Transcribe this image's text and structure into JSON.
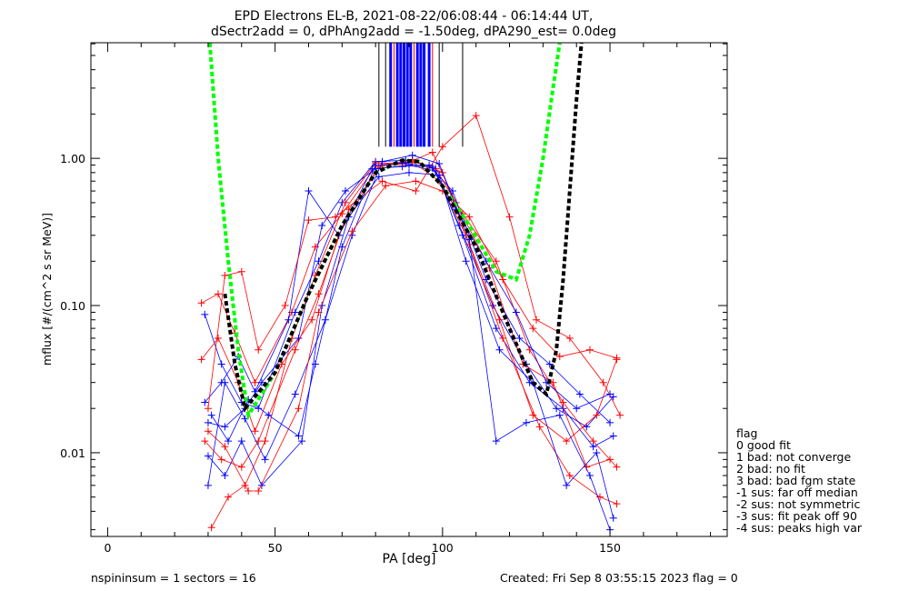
{
  "chart_data": {
    "type": "line",
    "title": "EPD Electrons EL-B, 2021-08-22/06:08:44 - 06:14:44 UT,",
    "subtitle": "dSectr2add = 0, dPhAng2add = -1.50deg, dPA290_est=   0.0deg",
    "xlabel": "PA [deg]",
    "ylabel": "mflux [#/(cm^2 s sr MeV)]",
    "xlim": [
      -5,
      185
    ],
    "ylim": [
      0.0027,
      6.1
    ],
    "yscale": "log",
    "xticks": [
      0,
      50,
      100,
      150
    ],
    "xtick_labels": [
      "0",
      "50",
      "100",
      "150"
    ],
    "yticks": [
      0.01,
      0.1,
      1.0
    ],
    "ytick_labels": [
      "0.01",
      "0.10",
      "1.00"
    ],
    "colors": {
      "red": "#ff0000",
      "blue": "#0000ff",
      "green": "#00ff00",
      "black": "#000000"
    },
    "series": [
      {
        "name": "red-1",
        "color": "#ff0000",
        "points": [
          [
            28,
            0.104
          ],
          [
            33,
            0.12
          ],
          [
            38,
            0.065
          ],
          [
            44,
            0.03
          ],
          [
            55,
            0.09
          ],
          [
            62,
            0.25
          ],
          [
            70,
            0.42
          ],
          [
            80,
            0.88
          ],
          [
            90,
            0.92
          ],
          [
            98,
            0.85
          ],
          [
            106,
            0.42
          ],
          [
            116,
            0.2
          ],
          [
            126,
            0.05
          ],
          [
            136,
            0.022
          ],
          [
            145,
            0.012
          ],
          [
            152,
            0.008
          ]
        ]
      },
      {
        "name": "blue-1",
        "color": "#0000ff",
        "points": [
          [
            29,
            0.087
          ],
          [
            34,
            0.04
          ],
          [
            40,
            0.022
          ],
          [
            45,
            0.02
          ],
          [
            56,
            0.09
          ],
          [
            63,
            0.2
          ],
          [
            70,
            0.5
          ],
          [
            80,
            0.95
          ],
          [
            89,
            0.97
          ],
          [
            97,
            0.88
          ],
          [
            105,
            0.35
          ],
          [
            115,
            0.1
          ],
          [
            125,
            0.04
          ],
          [
            134,
            0.02
          ],
          [
            143,
            0.015
          ],
          [
            151,
            0.024
          ]
        ]
      },
      {
        "name": "red-2",
        "color": "#ff0000",
        "points": [
          [
            28,
            0.043
          ],
          [
            33,
            0.06
          ],
          [
            39,
            0.03
          ],
          [
            44,
            0.014
          ],
          [
            52,
            0.04
          ],
          [
            61,
            0.08
          ],
          [
            69,
            0.3
          ],
          [
            81,
            0.9
          ],
          [
            91,
            0.95
          ],
          [
            99,
            0.7
          ],
          [
            107,
            0.3
          ],
          [
            117,
            0.08
          ],
          [
            127,
            0.018
          ],
          [
            137,
            0.012
          ],
          [
            146,
            0.018
          ],
          [
            152,
            0.043
          ]
        ]
      },
      {
        "name": "blue-2",
        "color": "#0000ff",
        "points": [
          [
            30,
            0.016
          ],
          [
            35,
            0.015
          ],
          [
            41,
            0.02
          ],
          [
            46,
            0.03
          ],
          [
            57,
            0.06
          ],
          [
            64,
            0.35
          ],
          [
            71,
            0.6
          ],
          [
            80,
            0.85
          ],
          [
            90,
            0.9
          ],
          [
            98,
            0.82
          ],
          [
            106,
            0.3
          ],
          [
            116,
            0.07
          ],
          [
            126,
            0.03
          ],
          [
            136,
            0.02
          ],
          [
            145,
            0.011
          ],
          [
            151,
            0.013
          ]
        ]
      },
      {
        "name": "red-3",
        "color": "#ff0000",
        "points": [
          [
            29,
            0.012
          ],
          [
            34,
            0.009
          ],
          [
            40,
            0.008
          ],
          [
            45,
            0.012
          ],
          [
            56,
            0.05
          ],
          [
            63,
            0.12
          ],
          [
            72,
            0.45
          ],
          [
            82,
            0.9
          ],
          [
            91,
            0.98
          ],
          [
            100,
            0.8
          ],
          [
            108,
            0.26
          ],
          [
            118,
            0.06
          ],
          [
            129,
            0.015
          ],
          [
            138,
            0.007
          ],
          [
            147,
            0.005
          ],
          [
            152,
            0.0045
          ]
        ]
      },
      {
        "name": "blue-3",
        "color": "#0000ff",
        "points": [
          [
            30,
            0.0095
          ],
          [
            35,
            0.007
          ],
          [
            40,
            0.012
          ],
          [
            46,
            0.006
          ],
          [
            58,
            0.012
          ],
          [
            64,
            0.1
          ],
          [
            72,
            0.4
          ],
          [
            81,
            0.75
          ],
          [
            90,
            0.8
          ],
          [
            99,
            0.77
          ],
          [
            107,
            0.2
          ],
          [
            117,
            0.05
          ],
          [
            127,
            0.03
          ],
          [
            137,
            0.006
          ],
          [
            146,
            0.01
          ],
          [
            151,
            0.0036
          ]
        ]
      },
      {
        "name": "red-4",
        "color": "#ff0000",
        "points": [
          [
            31,
            0.0031
          ],
          [
            36,
            0.005
          ],
          [
            41,
            0.006
          ],
          [
            47,
            0.012
          ],
          [
            55,
            0.06
          ],
          [
            62,
            0.16
          ],
          [
            71,
            0.5
          ],
          [
            80,
            0.93
          ],
          [
            89,
            0.92
          ],
          [
            97,
            1.1
          ],
          [
            104,
            0.5
          ],
          [
            114,
            0.18
          ],
          [
            124,
            0.04
          ],
          [
            133,
            0.03
          ],
          [
            143,
            0.008
          ],
          [
            150,
            0.009
          ]
        ]
      },
      {
        "name": "blue-4",
        "color": "#0000ff",
        "points": [
          [
            29,
            0.022
          ],
          [
            34,
            0.03
          ],
          [
            39,
            0.045
          ],
          [
            44,
            0.026
          ],
          [
            54,
            0.08
          ],
          [
            60,
            0.6
          ],
          [
            69,
            0.3
          ],
          [
            79,
            0.85
          ],
          [
            88,
            0.88
          ],
          [
            96,
            0.9
          ],
          [
            103,
            0.6
          ],
          [
            113,
            0.15
          ],
          [
            123,
            0.06
          ],
          [
            132,
            0.04
          ],
          [
            141,
            0.025
          ],
          [
            150,
            0.016
          ]
        ]
      },
      {
        "name": "red-5",
        "color": "#ff0000",
        "points": [
          [
            30,
            0.02
          ],
          [
            35,
            0.16
          ],
          [
            40,
            0.17
          ],
          [
            45,
            0.05
          ],
          [
            53,
            0.1
          ],
          [
            60,
            0.38
          ],
          [
            68,
            0.4
          ],
          [
            82,
            0.7
          ],
          [
            92,
            0.6
          ],
          [
            100,
            1.2
          ],
          [
            110,
            1.95
          ],
          [
            120,
            0.4
          ],
          [
            128,
            0.08
          ],
          [
            138,
            0.06
          ],
          [
            148,
            0.03
          ],
          [
            153,
            0.018
          ]
        ]
      },
      {
        "name": "blue-5",
        "color": "#0000ff",
        "points": [
          [
            30,
            0.006
          ],
          [
            35,
            0.03
          ],
          [
            41,
            0.017
          ],
          [
            47,
            0.009
          ],
          [
            56,
            0.025
          ],
          [
            65,
            0.08
          ],
          [
            73,
            0.3
          ],
          [
            82,
            0.95
          ],
          [
            91,
            1.05
          ],
          [
            99,
            0.92
          ],
          [
            108,
            0.28
          ],
          [
            116,
            0.012
          ],
          [
            125,
            0.016
          ],
          [
            135,
            0.018
          ],
          [
            144,
            0.007
          ],
          [
            150,
            0.003
          ]
        ]
      },
      {
        "name": "red-6",
        "color": "#ff0000",
        "points": [
          [
            30,
            0.014
          ],
          [
            35,
            0.011
          ],
          [
            42,
            0.0055
          ],
          [
            45,
            0.0055
          ],
          [
            57,
            0.02
          ],
          [
            63,
            0.09
          ],
          [
            73,
            0.32
          ],
          [
            83,
            0.65
          ],
          [
            92,
            0.7
          ],
          [
            100,
            0.6
          ],
          [
            108,
            0.4
          ],
          [
            118,
            0.15
          ],
          [
            127,
            0.07
          ],
          [
            135,
            0.045
          ],
          [
            144,
            0.05
          ],
          [
            152,
            0.044
          ]
        ]
      },
      {
        "name": "blue-6",
        "color": "#0000ff",
        "points": [
          [
            31,
            0.018
          ],
          [
            36,
            0.012
          ],
          [
            42,
            0.023
          ],
          [
            48,
            0.018
          ],
          [
            57,
            0.013
          ],
          [
            62,
            0.04
          ],
          [
            70,
            0.25
          ],
          [
            80,
            0.9
          ],
          [
            89,
            0.93
          ],
          [
            97,
            0.86
          ],
          [
            104,
            0.45
          ],
          [
            113,
            0.2
          ],
          [
            122,
            0.09
          ],
          [
            131,
            0.03
          ],
          [
            140,
            0.02
          ],
          [
            150,
            0.025
          ]
        ]
      }
    ],
    "fits": [
      {
        "name": "green-fit",
        "color": "#00ff00",
        "points": [
          [
            30.5,
            6.1
          ],
          [
            33,
            1.0
          ],
          [
            36,
            0.2
          ],
          [
            39,
            0.05
          ],
          [
            42,
            0.018
          ],
          [
            50,
            0.035
          ],
          [
            60,
            0.12
          ],
          [
            70,
            0.35
          ],
          [
            80,
            0.8
          ],
          [
            88,
            0.97
          ],
          [
            93,
            0.95
          ],
          [
            100,
            0.65
          ],
          [
            108,
            0.35
          ],
          [
            116,
            0.17
          ],
          [
            122,
            0.15
          ],
          [
            126,
            0.3
          ],
          [
            130,
            1.0
          ],
          [
            133,
            3.0
          ],
          [
            135,
            6.1
          ]
        ]
      },
      {
        "name": "black-fit",
        "color": "#000000",
        "points": [
          [
            35,
            0.12
          ],
          [
            38,
            0.04
          ],
          [
            41,
            0.02
          ],
          [
            50,
            0.035
          ],
          [
            60,
            0.12
          ],
          [
            70,
            0.35
          ],
          [
            80,
            0.8
          ],
          [
            88,
            0.97
          ],
          [
            93,
            0.95
          ],
          [
            100,
            0.65
          ],
          [
            110,
            0.25
          ],
          [
            120,
            0.07
          ],
          [
            127,
            0.03
          ],
          [
            131,
            0.025
          ],
          [
            134,
            0.05
          ],
          [
            136,
            0.15
          ],
          [
            138,
            0.6
          ],
          [
            140,
            2.5
          ],
          [
            141.5,
            6.1
          ]
        ]
      }
    ],
    "top_lines": [
      {
        "pa": 81,
        "color": "#000000"
      },
      {
        "pa": 83,
        "color": "#000000"
      },
      {
        "pa": 84.5,
        "color": "#0000ff"
      },
      {
        "pa": 85.5,
        "color": "#ff0000"
      },
      {
        "pa": 86.5,
        "color": "#0000ff"
      },
      {
        "pa": 87.5,
        "color": "#0000ff"
      },
      {
        "pa": 88.5,
        "color": "#0000ff"
      },
      {
        "pa": 89.5,
        "color": "#0000ff"
      },
      {
        "pa": 90.5,
        "color": "#0000ff"
      },
      {
        "pa": 91.5,
        "color": "#ff0000"
      },
      {
        "pa": 92.5,
        "color": "#0000ff"
      },
      {
        "pa": 93.5,
        "color": "#0000ff"
      },
      {
        "pa": 94.5,
        "color": "#0000ff"
      },
      {
        "pa": 96,
        "color": "#0000ff"
      },
      {
        "pa": 97,
        "color": "#ff0000"
      },
      {
        "pa": 99,
        "color": "#000000"
      },
      {
        "pa": 106,
        "color": "#000000"
      }
    ],
    "legend": {
      "title": "flag",
      "entries": [
        "0 good fit",
        "1 bad: not converge",
        "2 bad: no fit",
        "3 bad: bad fgm state",
        "-1 sus: far off median",
        "-2 sus: not symmetric",
        "-3 sus: fit peak off 90",
        "-4 sus: peaks high var"
      ],
      "placement": "right"
    }
  },
  "footer": {
    "left": "nspininsum =  1  sectors = 16",
    "right": "Created: Fri Sep  8 03:55:15 2023   flag = 0"
  }
}
